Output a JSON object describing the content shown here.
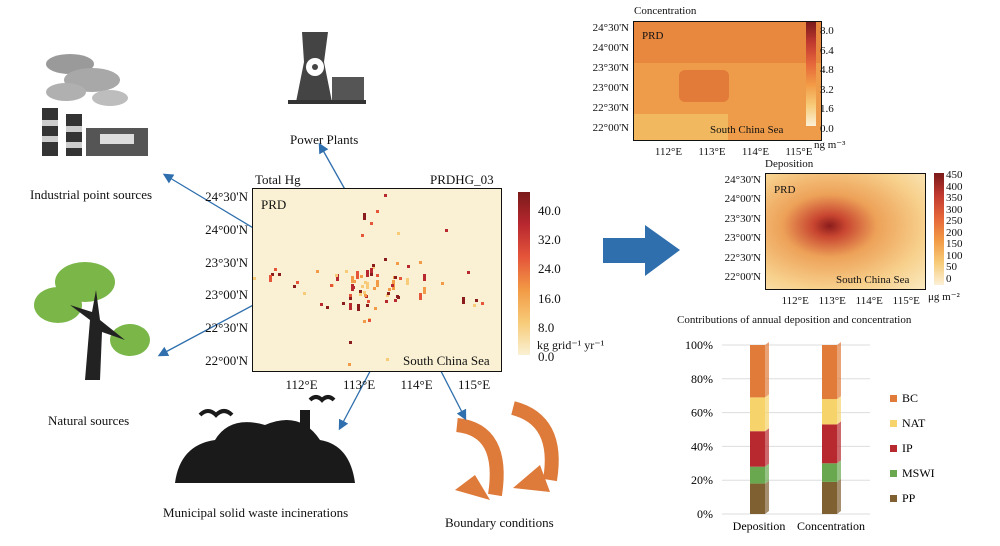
{
  "sources": {
    "power_plants": "Power Plants",
    "industrial": "Industrial point sources",
    "natural": "Natural sources",
    "mswi": "Municipal solid waste incinerations",
    "boundary": "Boundary conditions"
  },
  "main_map": {
    "title_left": "Total Hg",
    "title_right": "PRDHG_03",
    "region": "PRD",
    "sea": "South China Sea",
    "lat_ticks": [
      "24°30'N",
      "24°00'N",
      "23°30'N",
      "23°00'N",
      "22°30'N",
      "22°00'N"
    ],
    "lon_ticks": [
      "112°E",
      "113°E",
      "114°E",
      "115°E"
    ],
    "colorbar_ticks": [
      "40.0",
      "32.0",
      "24.0",
      "16.0",
      "8.0",
      "0.0"
    ],
    "unit": "kg grid⁻¹ yr⁻¹"
  },
  "concentration_map": {
    "title": "Concentration",
    "region": "PRD",
    "sea": "South China Sea",
    "lat_ticks": [
      "24°30'N",
      "24°00'N",
      "23°30'N",
      "23°00'N",
      "22°30'N",
      "22°00'N"
    ],
    "lon_ticks": [
      "112°E",
      "113°E",
      "114°E",
      "115°E"
    ],
    "colorbar_ticks": [
      "8.0",
      "6.4",
      "4.8",
      "3.2",
      "1.6",
      "0.0"
    ],
    "unit": "ng m⁻³"
  },
  "deposition_map": {
    "title": "Deposition",
    "region": "PRD",
    "sea": "South China Sea",
    "lat_ticks": [
      "24°30'N",
      "24°00'N",
      "23°30'N",
      "23°00'N",
      "22°30'N",
      "22°00'N"
    ],
    "lon_ticks": [
      "112°E",
      "113°E",
      "114°E",
      "115°E"
    ],
    "colorbar_ticks": [
      "450",
      "400",
      "350",
      "300",
      "250",
      "200",
      "150",
      "100",
      "50",
      "0"
    ],
    "unit": "μg m⁻²"
  },
  "chart_data": {
    "type": "bar",
    "stacked": true,
    "title": "Contributions of annual deposition and concentration",
    "categories": [
      "Deposition",
      "Concentration"
    ],
    "yticks": [
      "0%",
      "20%",
      "40%",
      "60%",
      "80%",
      "100%"
    ],
    "ylim": [
      0,
      100
    ],
    "legend_position": "right",
    "series": [
      {
        "name": "PP",
        "color": "#7f6030",
        "values": [
          18,
          19
        ]
      },
      {
        "name": "MSWI",
        "color": "#6aa84f",
        "values": [
          10,
          11
        ]
      },
      {
        "name": "IP",
        "color": "#b8282f",
        "values": [
          21,
          23
        ]
      },
      {
        "name": "NAT",
        "color": "#f6d36b",
        "values": [
          20,
          15
        ]
      },
      {
        "name": "BC",
        "color": "#e07b39",
        "values": [
          31,
          32
        ]
      }
    ]
  },
  "colors": {
    "arrow_blue": "#2f6fad",
    "boundary_orange": "#de7a3a",
    "map_bg": "#faf1d4"
  }
}
